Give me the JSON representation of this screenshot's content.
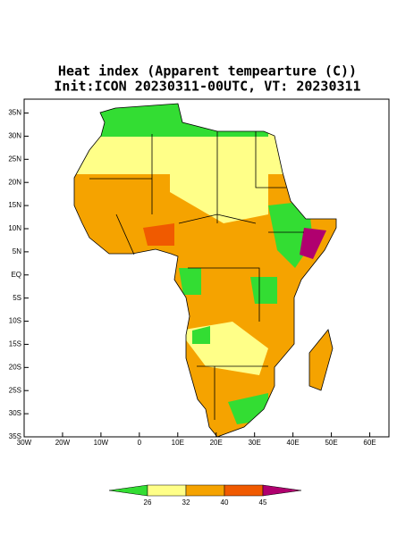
{
  "title": "Heat index (Apparent tempearture (C))",
  "subtitle": "Init:ICON 20230311-00UTC, VT: 20230311",
  "map": {
    "xlim": [
      -30,
      65
    ],
    "ylim": [
      -35,
      38
    ],
    "xticks": [
      {
        "value": -30,
        "label": "30W"
      },
      {
        "value": -20,
        "label": "20W"
      },
      {
        "value": -10,
        "label": "10W"
      },
      0,
      {
        "value": 10,
        "label": "10E"
      },
      {
        "value": 20,
        "label": "20E"
      },
      {
        "value": 30,
        "label": "30E"
      },
      {
        "value": 40,
        "label": "40E"
      },
      {
        "value": 50,
        "label": "50E"
      },
      {
        "value": 60,
        "label": "60E"
      }
    ],
    "yticks": [
      {
        "value": 35,
        "label": "35N"
      },
      {
        "value": 30,
        "label": "30N"
      },
      {
        "value": 25,
        "label": "25N"
      },
      {
        "value": 20,
        "label": "20N"
      },
      {
        "value": 15,
        "label": "15N"
      },
      {
        "value": 10,
        "label": "10N"
      },
      {
        "value": 5,
        "label": "5N"
      },
      {
        "value": 0,
        "label": "EQ"
      },
      {
        "value": -5,
        "label": "5S"
      },
      {
        "value": -10,
        "label": "10S"
      },
      {
        "value": -15,
        "label": "15S"
      },
      {
        "value": -20,
        "label": "20S"
      },
      {
        "value": -25,
        "label": "25S"
      },
      {
        "value": -30,
        "label": "30S"
      },
      {
        "value": -35,
        "label": "35S"
      }
    ]
  },
  "colorbar": {
    "levels": [
      26,
      32,
      40,
      45
    ],
    "colors": [
      "#33dd33",
      "#ffff88",
      "#f5a300",
      "#f05a00",
      "#b0006f"
    ]
  }
}
